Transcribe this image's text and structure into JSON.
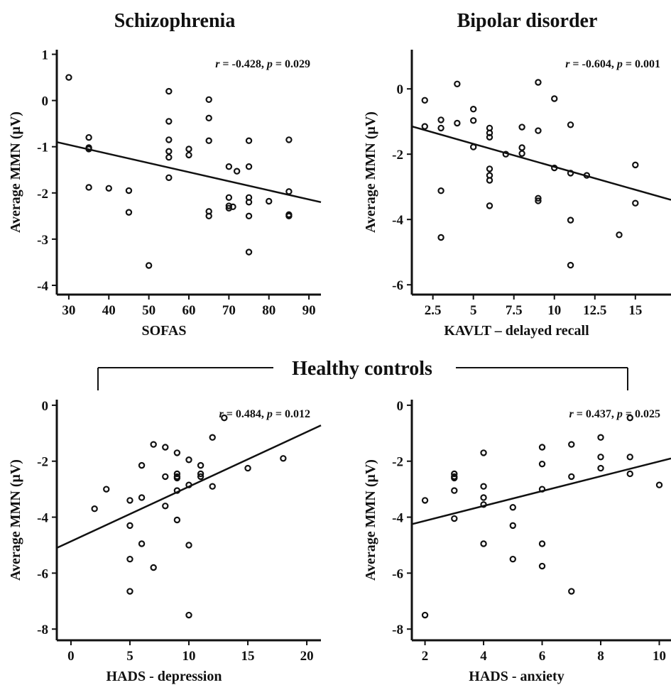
{
  "figure": {
    "group_title": "Healthy controls"
  },
  "chart_data": [
    {
      "type": "scatter",
      "title": "Schizophrenia",
      "xlabel": "SOFAS",
      "ylabel": "Average MMN (μV)",
      "stats_r": "-0.428",
      "stats_p": "0.029",
      "xlim": [
        27,
        93
      ],
      "ylim": [
        -4.2,
        1.1
      ],
      "xticks": [
        "30",
        "40",
        "50",
        "60",
        "70",
        "80",
        "90"
      ],
      "yticks": [
        "1",
        "0",
        "-1",
        "-2",
        "-3",
        "-4"
      ],
      "fit_line": {
        "x": [
          27,
          93
        ],
        "y": [
          -0.9,
          -2.2
        ]
      },
      "points": [
        [
          30,
          0.5
        ],
        [
          35,
          -0.8
        ],
        [
          35,
          -1.02
        ],
        [
          35,
          -1.05
        ],
        [
          35,
          -1.88
        ],
        [
          40,
          -1.9
        ],
        [
          45,
          -1.95
        ],
        [
          45,
          -2.42
        ],
        [
          50,
          -3.57
        ],
        [
          55,
          0.2
        ],
        [
          55,
          -0.45
        ],
        [
          55,
          -0.85
        ],
        [
          55,
          -1.1
        ],
        [
          55,
          -1.23
        ],
        [
          55,
          -1.67
        ],
        [
          60,
          -1.05
        ],
        [
          60,
          -1.18
        ],
        [
          65,
          0.02
        ],
        [
          65,
          -0.38
        ],
        [
          65,
          -0.87
        ],
        [
          65,
          -2.4
        ],
        [
          65,
          -2.5
        ],
        [
          70,
          -1.43
        ],
        [
          70,
          -2.1
        ],
        [
          70,
          -2.28
        ],
        [
          70,
          -2.33
        ],
        [
          71,
          -2.3
        ],
        [
          72,
          -1.53
        ],
        [
          75,
          -0.87
        ],
        [
          75,
          -1.43
        ],
        [
          75,
          -2.1
        ],
        [
          75,
          -2.2
        ],
        [
          75,
          -2.5
        ],
        [
          75,
          -3.28
        ],
        [
          80,
          -2.18
        ],
        [
          85,
          -0.85
        ],
        [
          85,
          -1.97
        ],
        [
          85,
          -2.47
        ],
        [
          85,
          -2.5
        ]
      ]
    },
    {
      "type": "scatter",
      "title": "Bipolar disorder",
      "xlabel": "KAVLT – delayed recall",
      "ylabel": "Average MMN (μV)",
      "stats_r": "-0.604",
      "stats_p": "0.001",
      "xlim": [
        1.2,
        17.2
      ],
      "ylim": [
        -6.3,
        1.2
      ],
      "xticks": [
        "2.5",
        "5",
        "7.5",
        "10",
        "12.5",
        "15"
      ],
      "xtick_values": [
        2.5,
        5,
        7.5,
        10,
        12.5,
        15
      ],
      "yticks": [
        "0",
        "-2",
        "-4",
        "-6"
      ],
      "ytick_values": [
        0,
        -2,
        -4,
        -6
      ],
      "fit_line": {
        "x": [
          1.2,
          17.2
        ],
        "y": [
          -1.15,
          -3.4
        ]
      },
      "points": [
        [
          2,
          -0.35
        ],
        [
          2,
          -1.15
        ],
        [
          3,
          -0.95
        ],
        [
          3,
          -1.2
        ],
        [
          3,
          -3.12
        ],
        [
          3,
          -4.55
        ],
        [
          4,
          0.15
        ],
        [
          4,
          -1.05
        ],
        [
          5,
          -0.62
        ],
        [
          5,
          -0.97
        ],
        [
          5,
          -1.78
        ],
        [
          6,
          -1.2
        ],
        [
          6,
          -1.35
        ],
        [
          6,
          -1.48
        ],
        [
          6,
          -2.45
        ],
        [
          6,
          -2.65
        ],
        [
          6,
          -2.8
        ],
        [
          6,
          -3.58
        ],
        [
          7,
          -2.0
        ],
        [
          8,
          -1.17
        ],
        [
          8,
          -1.8
        ],
        [
          8,
          -1.98
        ],
        [
          9,
          0.2
        ],
        [
          9,
          -1.28
        ],
        [
          9,
          -3.35
        ],
        [
          9,
          -3.43
        ],
        [
          10,
          -0.3
        ],
        [
          10,
          -2.42
        ],
        [
          11,
          -1.1
        ],
        [
          11,
          -2.58
        ],
        [
          11,
          -4.02
        ],
        [
          11,
          -5.4
        ],
        [
          12,
          -2.65
        ],
        [
          14,
          -4.47
        ],
        [
          15,
          -2.33
        ],
        [
          15,
          -3.5
        ]
      ]
    },
    {
      "type": "scatter",
      "title": "",
      "xlabel": "HADS - depression",
      "ylabel": "Average MMN (μV)",
      "stats_r": "0.484",
      "stats_p": "0.012",
      "xlim": [
        -1.2,
        21.2
      ],
      "ylim": [
        -8.4,
        0.2
      ],
      "xticks": [
        "0",
        "5",
        "10",
        "15",
        "20"
      ],
      "xtick_values": [
        0,
        5,
        10,
        15,
        20
      ],
      "yticks": [
        "0",
        "-2",
        "-4",
        "-6",
        "-8"
      ],
      "ytick_values": [
        0,
        -2,
        -4,
        -6,
        -8
      ],
      "fit_line": {
        "x": [
          -1.2,
          21.2
        ],
        "y": [
          -5.1,
          -0.72
        ]
      },
      "points": [
        [
          2,
          -3.7
        ],
        [
          3,
          -3.0
        ],
        [
          5,
          -3.4
        ],
        [
          5,
          -4.3
        ],
        [
          5,
          -5.5
        ],
        [
          5,
          -6.65
        ],
        [
          6,
          -2.15
        ],
        [
          6,
          -3.3
        ],
        [
          6,
          -4.95
        ],
        [
          7,
          -1.4
        ],
        [
          7,
          -5.8
        ],
        [
          8,
          -1.5
        ],
        [
          8,
          -2.55
        ],
        [
          8,
          -3.6
        ],
        [
          9,
          -1.7
        ],
        [
          9,
          -2.45
        ],
        [
          9,
          -2.55
        ],
        [
          9,
          -2.6
        ],
        [
          9,
          -3.05
        ],
        [
          9,
          -4.1
        ],
        [
          10,
          -1.95
        ],
        [
          10,
          -2.85
        ],
        [
          10,
          -5.0
        ],
        [
          10,
          -7.5
        ],
        [
          11,
          -2.15
        ],
        [
          11,
          -2.45
        ],
        [
          11,
          -2.55
        ],
        [
          12,
          -1.15
        ],
        [
          12,
          -2.9
        ],
        [
          13,
          -0.45
        ],
        [
          15,
          -2.25
        ],
        [
          18,
          -1.9
        ]
      ]
    },
    {
      "type": "scatter",
      "title": "",
      "xlabel": "HADS - anxiety",
      "ylabel": "Average MMN (μV)",
      "stats_r": "0.437",
      "stats_p": "0.025",
      "xlim": [
        1.55,
        10.4
      ],
      "ylim": [
        -8.4,
        0.2
      ],
      "xticks": [
        "2",
        "4",
        "6",
        "8",
        "10"
      ],
      "xtick_values": [
        2,
        4,
        6,
        8,
        10
      ],
      "yticks": [
        "0",
        "-2",
        "-4",
        "-6",
        "-8"
      ],
      "ytick_values": [
        0,
        -2,
        -4,
        -6,
        -8
      ],
      "fit_line": {
        "x": [
          1.55,
          10.4
        ],
        "y": [
          -4.25,
          -1.9
        ]
      },
      "points": [
        [
          2,
          -3.4
        ],
        [
          2,
          -7.5
        ],
        [
          3,
          -2.45
        ],
        [
          3,
          -2.55
        ],
        [
          3,
          -2.6
        ],
        [
          3,
          -3.05
        ],
        [
          3,
          -4.05
        ],
        [
          4,
          -1.7
        ],
        [
          4,
          -2.9
        ],
        [
          4,
          -3.3
        ],
        [
          4,
          -3.55
        ],
        [
          4,
          -4.95
        ],
        [
          5,
          -3.65
        ],
        [
          5,
          -4.3
        ],
        [
          5,
          -5.5
        ],
        [
          6,
          -1.5
        ],
        [
          6,
          -2.1
        ],
        [
          6,
          -3.0
        ],
        [
          6,
          -4.95
        ],
        [
          6,
          -5.75
        ],
        [
          7,
          -1.4
        ],
        [
          7,
          -2.55
        ],
        [
          7,
          -6.65
        ],
        [
          8,
          -1.15
        ],
        [
          8,
          -1.85
        ],
        [
          8,
          -2.25
        ],
        [
          9,
          -0.45
        ],
        [
          9,
          -1.85
        ],
        [
          9,
          -2.45
        ],
        [
          10,
          -2.85
        ]
      ]
    }
  ]
}
